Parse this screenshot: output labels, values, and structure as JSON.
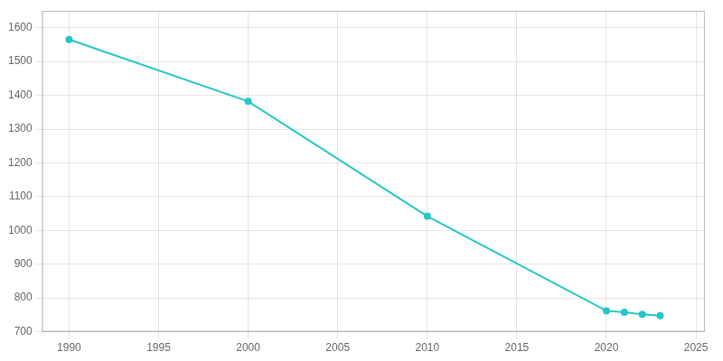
{
  "chart_data": {
    "type": "line",
    "x": [
      1990,
      2000,
      2010,
      2020,
      2021,
      2022,
      2023
    ],
    "values": [
      1565,
      1382,
      1042,
      762,
      758,
      752,
      748
    ],
    "color": "#26c6c6",
    "marker": "circle",
    "xlim": [
      1988.5,
      2025.5
    ],
    "ylim": [
      700,
      1650
    ],
    "xticks": [
      1990,
      1995,
      2000,
      2005,
      2010,
      2015,
      2020,
      2025
    ],
    "yticks": [
      700,
      800,
      900,
      1000,
      1100,
      1200,
      1300,
      1400,
      1500,
      1600
    ],
    "grid": true
  }
}
